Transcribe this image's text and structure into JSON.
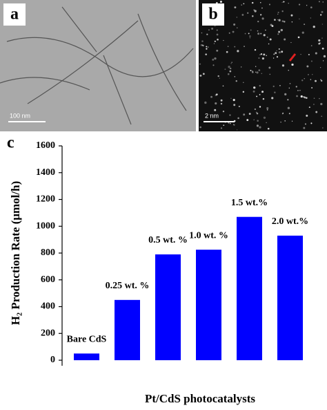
{
  "figure": {
    "panel_a": {
      "label": "a",
      "scale_bar": "100 nm"
    },
    "panel_b": {
      "label": "b",
      "scale_bar": "2 nm"
    }
  },
  "chart_data": {
    "type": "bar",
    "panel_label": "c",
    "categories": [
      "Bare CdS",
      "0.25 wt. %",
      "0.5 wt. %",
      "1.0 wt. %",
      "1.5 wt.%",
      "2.0 wt.%"
    ],
    "values": [
      50,
      450,
      790,
      825,
      1070,
      930
    ],
    "color": "#0000ff",
    "ylim": [
      0,
      1600
    ],
    "yticks": [
      0,
      200,
      400,
      600,
      800,
      1000,
      1200,
      1400,
      1600
    ],
    "y_label": "H₂ Production Rate (μmol/h)",
    "x_label": "Pt/CdS photocatalysts"
  }
}
